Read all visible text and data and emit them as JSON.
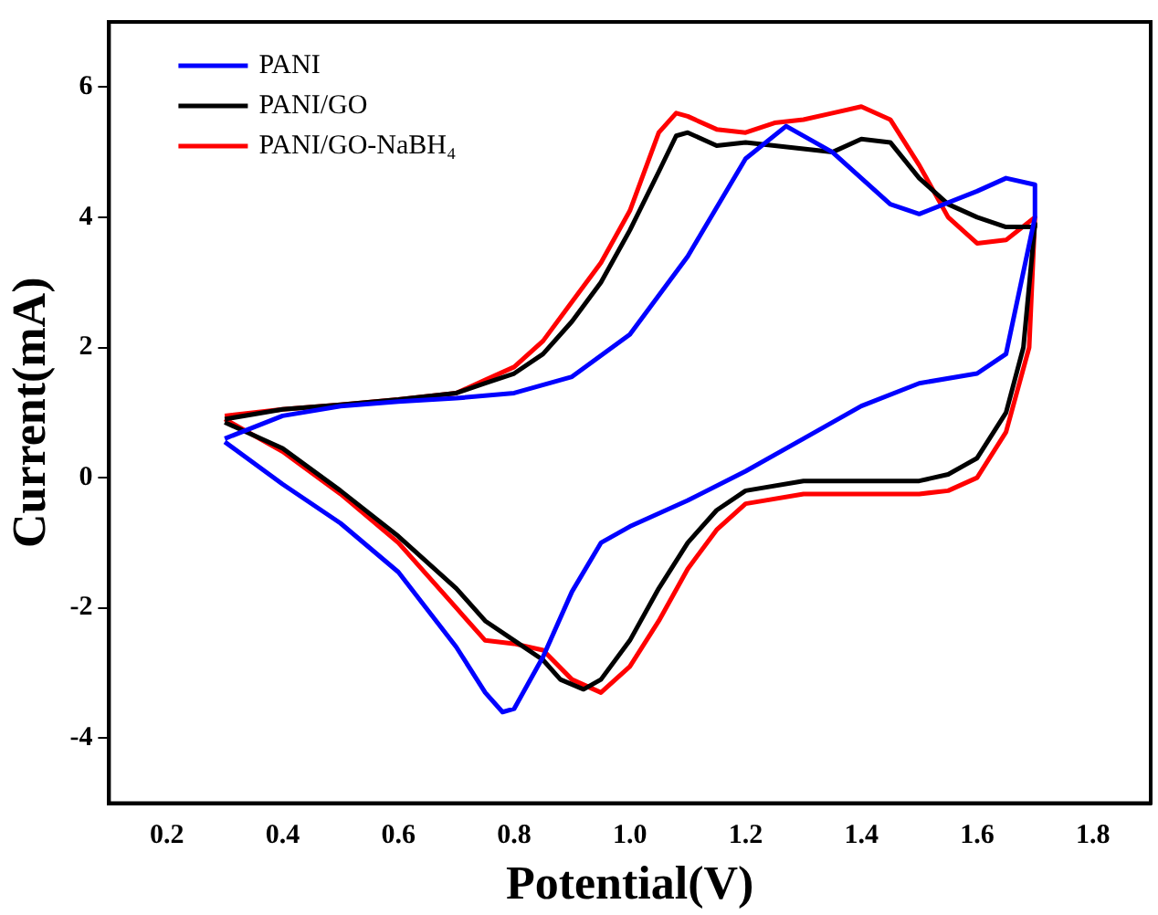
{
  "chart_data": {
    "type": "line",
    "xlabel": "Potential(V)",
    "ylabel": "Current(mA)",
    "xlim": [
      0.1,
      1.9
    ],
    "ylim": [
      -5,
      7
    ],
    "xticks": [
      0.2,
      0.4,
      0.6,
      0.8,
      {
        "value": 1,
        "label": "1.0"
      },
      1.2,
      1.4,
      1.6,
      1.8
    ],
    "yticks": [
      -4,
      -2,
      0,
      2,
      4,
      6
    ],
    "grid": false,
    "legend": "top left",
    "marker": "none",
    "line_style": "solid",
    "series": [
      {
        "name": "PANI",
        "color": "#0000ff",
        "x": [
          0.3,
          0.4,
          0.5,
          0.6,
          0.7,
          0.8,
          0.9,
          1.0,
          1.1,
          1.2,
          1.27,
          1.35,
          1.45,
          1.5,
          1.6,
          1.65,
          1.7,
          1.7,
          1.65,
          1.6,
          1.5,
          1.4,
          1.3,
          1.2,
          1.1,
          1.0,
          0.95,
          0.9,
          0.85,
          0.8,
          0.78,
          0.75,
          0.7,
          0.6,
          0.5,
          0.4,
          0.3
        ],
        "values": [
          0.6,
          0.95,
          1.1,
          1.17,
          1.22,
          1.3,
          1.55,
          2.2,
          3.4,
          4.9,
          5.4,
          5.0,
          4.2,
          4.05,
          4.4,
          4.6,
          4.5,
          4.0,
          1.9,
          1.6,
          1.45,
          1.1,
          0.6,
          0.1,
          -0.35,
          -0.75,
          -1.0,
          -1.75,
          -2.75,
          -3.55,
          -3.6,
          -3.3,
          -2.6,
          -1.45,
          -0.7,
          -0.1,
          0.55
        ]
      },
      {
        "name": "PANI/GO",
        "color": "#000000",
        "x": [
          0.3,
          0.4,
          0.5,
          0.6,
          0.7,
          0.75,
          0.8,
          0.85,
          0.9,
          0.95,
          1.0,
          1.05,
          1.08,
          1.1,
          1.15,
          1.2,
          1.3,
          1.35,
          1.4,
          1.45,
          1.5,
          1.55,
          1.6,
          1.65,
          1.7,
          1.7,
          1.68,
          1.65,
          1.6,
          1.55,
          1.5,
          1.4,
          1.3,
          1.2,
          1.15,
          1.1,
          1.05,
          1.0,
          0.95,
          0.92,
          0.88,
          0.85,
          0.8,
          0.75,
          0.7,
          0.6,
          0.5,
          0.4,
          0.3
        ],
        "values": [
          0.9,
          1.05,
          1.12,
          1.2,
          1.3,
          1.45,
          1.6,
          1.9,
          2.4,
          3.0,
          3.8,
          4.7,
          5.25,
          5.3,
          5.1,
          5.15,
          5.05,
          5.0,
          5.2,
          5.15,
          4.6,
          4.2,
          4.0,
          3.85,
          3.85,
          3.9,
          2.0,
          1.0,
          0.3,
          0.05,
          -0.05,
          -0.05,
          -0.05,
          -0.2,
          -0.5,
          -1.0,
          -1.7,
          -2.5,
          -3.1,
          -3.25,
          -3.1,
          -2.8,
          -2.5,
          -2.2,
          -1.7,
          -0.9,
          -0.2,
          0.45,
          0.85
        ]
      },
      {
        "name": "PANI/GO-NaBH₄",
        "color": "#ff0000",
        "x": [
          0.3,
          0.4,
          0.5,
          0.6,
          0.7,
          0.75,
          0.8,
          0.85,
          0.9,
          0.95,
          1.0,
          1.05,
          1.08,
          1.1,
          1.15,
          1.2,
          1.25,
          1.3,
          1.35,
          1.4,
          1.45,
          1.5,
          1.55,
          1.6,
          1.65,
          1.7,
          1.69,
          1.65,
          1.6,
          1.55,
          1.5,
          1.4,
          1.3,
          1.2,
          1.15,
          1.1,
          1.05,
          1.0,
          0.95,
          0.9,
          0.85,
          0.8,
          0.75,
          0.7,
          0.6,
          0.5,
          0.4,
          0.3
        ],
        "values": [
          0.95,
          1.05,
          1.12,
          1.2,
          1.3,
          1.5,
          1.7,
          2.1,
          2.7,
          3.3,
          4.1,
          5.3,
          5.6,
          5.55,
          5.35,
          5.3,
          5.45,
          5.5,
          5.6,
          5.7,
          5.5,
          4.8,
          4.0,
          3.6,
          3.65,
          4.0,
          2.0,
          0.7,
          0.0,
          -0.2,
          -0.25,
          -0.25,
          -0.25,
          -0.4,
          -0.8,
          -1.4,
          -2.2,
          -2.9,
          -3.3,
          -3.1,
          -2.65,
          -2.55,
          -2.5,
          -2.0,
          -1.0,
          -0.25,
          0.4,
          0.9
        ]
      }
    ]
  }
}
